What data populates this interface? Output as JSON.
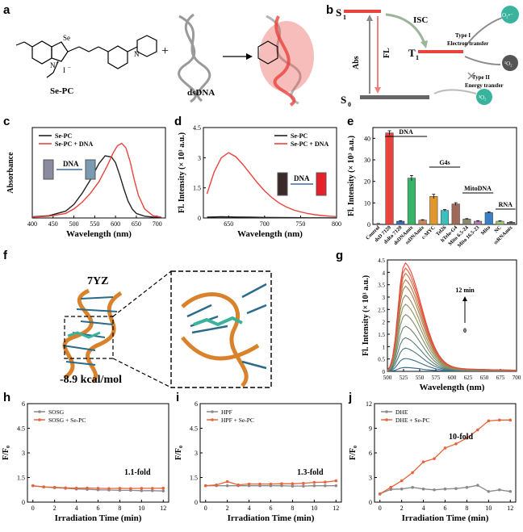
{
  "panel_labels": [
    "a",
    "b",
    "c",
    "d",
    "e",
    "f",
    "g",
    "h",
    "i",
    "j"
  ],
  "a": {
    "molecule_label": "Se-PC",
    "atoms": {
      "se": "Se",
      "n_plus": "N",
      "plus": "+",
      "i_minus": "I",
      "minus": "−",
      "n_right": "N"
    },
    "dna_label": "dsDNA",
    "plus_sign": "+"
  },
  "b": {
    "s1": "S",
    "s1_sub": "1",
    "s0": "S",
    "s0_sub": "0",
    "t1": "T",
    "t1_sub": "1",
    "isc": "ISC",
    "abs": "Abs",
    "fl": "FL",
    "type1_title": "Type I",
    "type1_text": "Electron transfer",
    "type2_title": "Type II",
    "type2_text": "Energy transfer",
    "o2_radical": "O₂•⁻",
    "singlet_o2": "¹O₂",
    "triplet_o2": "³O₂"
  },
  "colors": {
    "red": "#e8433d",
    "black": "#222222",
    "orange": "#e8643a",
    "gray": "#8a8a8a",
    "teal": "#3ab39e",
    "dna_orange": "#d9822b"
  },
  "f": {
    "pdb": "7YZ",
    "energy": "-8.9 kcal/mol"
  },
  "chart_data": [
    {
      "panel": "c",
      "type": "line",
      "xlabel": "Wavelength (nm)",
      "ylabel": "Absorbance",
      "xlim": [
        400,
        720
      ],
      "ylim": [
        0,
        0.4
      ],
      "xticks": [
        400,
        450,
        500,
        550,
        600,
        650,
        700
      ],
      "yticks": [],
      "inset_label": "DNA",
      "series": [
        {
          "name": "Se-PC",
          "color": "#222222",
          "x": [
            400,
            440,
            480,
            500,
            520,
            540,
            560,
            575,
            590,
            600,
            610,
            620,
            630,
            640,
            650,
            670,
            690,
            710
          ],
          "y": [
            0.005,
            0.01,
            0.03,
            0.06,
            0.11,
            0.17,
            0.24,
            0.275,
            0.27,
            0.245,
            0.19,
            0.13,
            0.075,
            0.04,
            0.02,
            0.008,
            0.004,
            0.003
          ]
        },
        {
          "name": "Se-PC + DNA",
          "color": "#e8433d",
          "x": [
            400,
            440,
            480,
            500,
            520,
            540,
            560,
            580,
            595,
            605,
            615,
            625,
            635,
            645,
            655,
            670,
            690,
            710
          ],
          "y": [
            0.004,
            0.008,
            0.02,
            0.04,
            0.07,
            0.11,
            0.16,
            0.23,
            0.29,
            0.32,
            0.33,
            0.31,
            0.25,
            0.17,
            0.1,
            0.04,
            0.01,
            0.004
          ]
        }
      ]
    },
    {
      "panel": "d",
      "type": "line",
      "xlabel": "Wavelength (nm)",
      "ylabel": "Fl. Intensity (× 10³ a.u.)",
      "xlim": [
        615,
        800
      ],
      "ylim": [
        0,
        4.5
      ],
      "xticks": [
        650,
        700,
        750,
        800
      ],
      "yticks": [
        0,
        1.5,
        3.0,
        4.5
      ],
      "inset_label": "DNA",
      "series": [
        {
          "name": "Se-PC",
          "color": "#222222",
          "x": [
            620,
            640,
            660,
            680,
            700,
            720,
            740,
            760,
            780,
            800
          ],
          "y": [
            0.04,
            0.06,
            0.05,
            0.04,
            0.03,
            0.02,
            0.015,
            0.01,
            0.008,
            0.005
          ]
        },
        {
          "name": "Se-PC + DNA",
          "color": "#e8433d",
          "x": [
            620,
            630,
            640,
            650,
            660,
            670,
            680,
            690,
            700,
            710,
            720,
            730,
            740,
            750,
            760,
            770,
            780,
            790,
            800
          ],
          "y": [
            1.2,
            2.3,
            3.0,
            3.25,
            3.05,
            2.65,
            2.2,
            1.75,
            1.35,
            1.02,
            0.75,
            0.55,
            0.4,
            0.3,
            0.22,
            0.16,
            0.12,
            0.09,
            0.07
          ]
        }
      ]
    },
    {
      "panel": "e",
      "type": "bar",
      "ylabel": "Fl. Intensity (× 10³ a.u.)",
      "ylim": [
        0,
        45
      ],
      "yticks": [
        0,
        10,
        20,
        30,
        40
      ],
      "categories": [
        "Control",
        "dsD 7120",
        "dsRo 7120",
        "dsDNAmix",
        "ssDNAmix",
        "c-MYC",
        "Tel26",
        "hTelo-G4",
        "Mito 6.5-24",
        "Mito 16.5-23",
        "Mito",
        "NC",
        "ssRNAmix"
      ],
      "values": [
        0.3,
        42.5,
        1.5,
        21.5,
        2.0,
        13.0,
        6.5,
        9.5,
        2.5,
        1.5,
        5.5,
        1.5,
        1.0
      ],
      "errors": [
        0.1,
        1.0,
        0.2,
        1.2,
        0.2,
        1.0,
        0.4,
        0.6,
        0.2,
        0.2,
        0.3,
        0.2,
        0.2
      ],
      "colors": [
        "#ffffff",
        "#e8433d",
        "#3b6fb5",
        "#3ab36a",
        "#c98560",
        "#e0982e",
        "#3dbfc0",
        "#a06a58",
        "#8a8a6a",
        "#b07db0",
        "#3a7fc8",
        "#9bc07a",
        "#6a6a6a"
      ],
      "group_labels": [
        {
          "text": "DNA",
          "from": 1,
          "to": 4
        },
        {
          "text": "G4s",
          "from": 5,
          "to": 7
        },
        {
          "text": "MitoDNA",
          "from": 8,
          "to": 10
        },
        {
          "text": "RNA",
          "from": 11,
          "to": 12
        }
      ]
    },
    {
      "panel": "g",
      "type": "line",
      "xlabel": "Wavelength (nm)",
      "ylabel": "Fl. Intensity (× 10³ a.u.)",
      "xlim": [
        500,
        700
      ],
      "ylim": [
        0,
        4.5
      ],
      "xticks": [
        500,
        525,
        550,
        575,
        600,
        625,
        650,
        675,
        700
      ],
      "yticks": [
        0,
        0.5,
        1.0,
        1.5,
        2.0,
        2.5,
        3.0,
        3.5,
        4.0,
        4.5
      ],
      "annotation_top": "12 min",
      "annotation_bottom": "0",
      "peak_x": 525,
      "peaks": [
        0.15,
        0.5,
        0.9,
        1.3,
        1.75,
        2.2,
        2.6,
        2.95,
        3.3,
        3.55,
        3.8,
        4.0,
        4.2
      ]
    },
    {
      "panel": "h",
      "type": "line",
      "xlabel": "Irradiation Time (min)",
      "ylabel": "F/F₀",
      "xlim": [
        -0.5,
        12.5
      ],
      "ylim": [
        0,
        6.0
      ],
      "xticks": [
        0,
        2,
        4,
        6,
        8,
        10,
        12
      ],
      "yticks": [
        0,
        1.5,
        3.0,
        4.5,
        6.0
      ],
      "annotation": "1.1-fold",
      "series": [
        {
          "name": "SOSG",
          "color": "#8a8a8a",
          "x": [
            0,
            1,
            2,
            3,
            4,
            5,
            6,
            7,
            8,
            9,
            10,
            11,
            12
          ],
          "y": [
            1.0,
            0.92,
            0.88,
            0.84,
            0.8,
            0.78,
            0.75,
            0.74,
            0.72,
            0.72,
            0.7,
            0.7,
            0.68
          ]
        },
        {
          "name": "SOSG + Se-PC",
          "color": "#e8643a",
          "x": [
            0,
            1,
            2,
            3,
            4,
            5,
            6,
            7,
            8,
            9,
            10,
            11,
            12
          ],
          "y": [
            1.0,
            0.93,
            0.9,
            0.87,
            0.85,
            0.86,
            0.84,
            0.83,
            0.84,
            0.83,
            0.84,
            0.84,
            0.85
          ]
        }
      ]
    },
    {
      "panel": "i",
      "type": "line",
      "xlabel": "Irradiation Time (min)",
      "ylabel": "F/F₀",
      "xlim": [
        -0.5,
        12.5
      ],
      "ylim": [
        0,
        6.0
      ],
      "xticks": [
        0,
        2,
        4,
        6,
        8,
        10,
        12
      ],
      "yticks": [
        0,
        1.5,
        3.0,
        4.5,
        6.0
      ],
      "annotation": "1.3-fold",
      "series": [
        {
          "name": "HPF",
          "color": "#8a8a8a",
          "x": [
            0,
            1,
            2,
            3,
            4,
            5,
            6,
            7,
            8,
            9,
            10,
            11,
            12
          ],
          "y": [
            1.0,
            1.0,
            1.0,
            1.0,
            1.0,
            1.0,
            1.0,
            1.0,
            0.98,
            0.98,
            1.0,
            1.0,
            1.0
          ]
        },
        {
          "name": "HPF + Se-PC",
          "color": "#e8643a",
          "x": [
            0,
            1,
            2,
            3,
            4,
            5,
            6,
            7,
            8,
            9,
            10,
            11,
            12
          ],
          "y": [
            1.0,
            1.05,
            1.25,
            1.05,
            1.1,
            1.1,
            1.1,
            1.12,
            1.12,
            1.15,
            1.2,
            1.22,
            1.3
          ]
        }
      ]
    },
    {
      "panel": "j",
      "type": "line",
      "xlabel": "Irradiation Time (min)",
      "ylabel": "F/F₀",
      "xlim": [
        -0.5,
        12.5
      ],
      "ylim": [
        0,
        12
      ],
      "xticks": [
        0,
        2,
        4,
        6,
        8,
        10,
        12
      ],
      "yticks": [
        0,
        3,
        6,
        9,
        12
      ],
      "annotation": "10-fold",
      "series": [
        {
          "name": "DHE",
          "color": "#8a8a8a",
          "x": [
            0,
            1,
            2,
            3,
            4,
            5,
            6,
            7,
            8,
            9,
            10,
            11,
            12
          ],
          "y": [
            1.0,
            1.55,
            1.6,
            1.8,
            1.6,
            1.5,
            1.6,
            1.65,
            1.8,
            2.05,
            1.3,
            1.5,
            1.3
          ]
        },
        {
          "name": "DHE + Se-PC",
          "color": "#e8643a",
          "x": [
            0,
            1,
            2,
            3,
            4,
            5,
            6,
            7,
            8,
            9,
            10,
            11,
            12
          ],
          "y": [
            1.0,
            1.8,
            2.6,
            3.6,
            4.9,
            5.3,
            6.6,
            7.1,
            7.8,
            8.8,
            9.9,
            10.0,
            10.0
          ]
        }
      ]
    }
  ]
}
